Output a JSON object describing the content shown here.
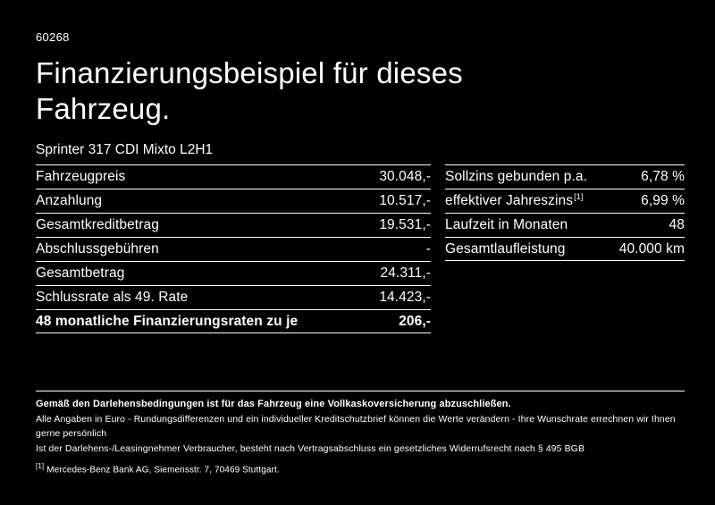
{
  "colors": {
    "background": "#000000",
    "text": "#ffffff",
    "rule": "#ffffff"
  },
  "header": {
    "code": "60268",
    "title_line1": "Finanzierungsbeispiel für dieses",
    "title_line2": "Fahrzeug.",
    "vehicle": "Sprinter 317 CDI Mixto L2H1"
  },
  "left_table": {
    "rows": [
      {
        "label": "Fahrzeugpreis",
        "value": "30.048,-"
      },
      {
        "label": "Anzahlung",
        "value": "10.517,-"
      },
      {
        "label": "Gesamtkreditbetrag",
        "value": "19.531,-"
      },
      {
        "label": "Abschlussgebühren",
        "value": "-"
      },
      {
        "label": "Gesamtbetrag",
        "value": "24.311,-"
      },
      {
        "label": "Schlussrate als 49. Rate",
        "value": "14.423,-"
      },
      {
        "label": "48 monatliche Finanzierungsraten zu je",
        "value": "206,-"
      }
    ]
  },
  "right_table": {
    "rows": [
      {
        "label": "Sollzins gebunden p.a.",
        "value": "6,78 %"
      },
      {
        "label": "effektiver Jahreszins",
        "sup": "[1]",
        "value": "6,99 %"
      },
      {
        "label": "Laufzeit in Monaten",
        "value": "48"
      },
      {
        "label": "Gesamtlaufleistung",
        "value": "40.000 km"
      }
    ]
  },
  "footer": {
    "insurance": "Gemäß den Darlehensbedingungen ist für das Fahrzeug eine Vollkaskoversicherung abzuschließen.",
    "line2": "Alle Angaben in Euro - Rundungsdifferenzen und ein individueller Kreditschutzbrief können die Werte verändern - Ihre Wunschrate errechnen wir Ihnen gerne persönlich",
    "line3": "Ist der Darlehens-/Leasingnehmer Verbraucher, besteht nach Vertragsabschluss ein gesetzliches Widerrufsrecht nach § 495 BGB",
    "footnote_marker": "[1]",
    "footnote": "Mercedes-Benz Bank AG, Siemensstr. 7, 70469 Stuttgart."
  }
}
